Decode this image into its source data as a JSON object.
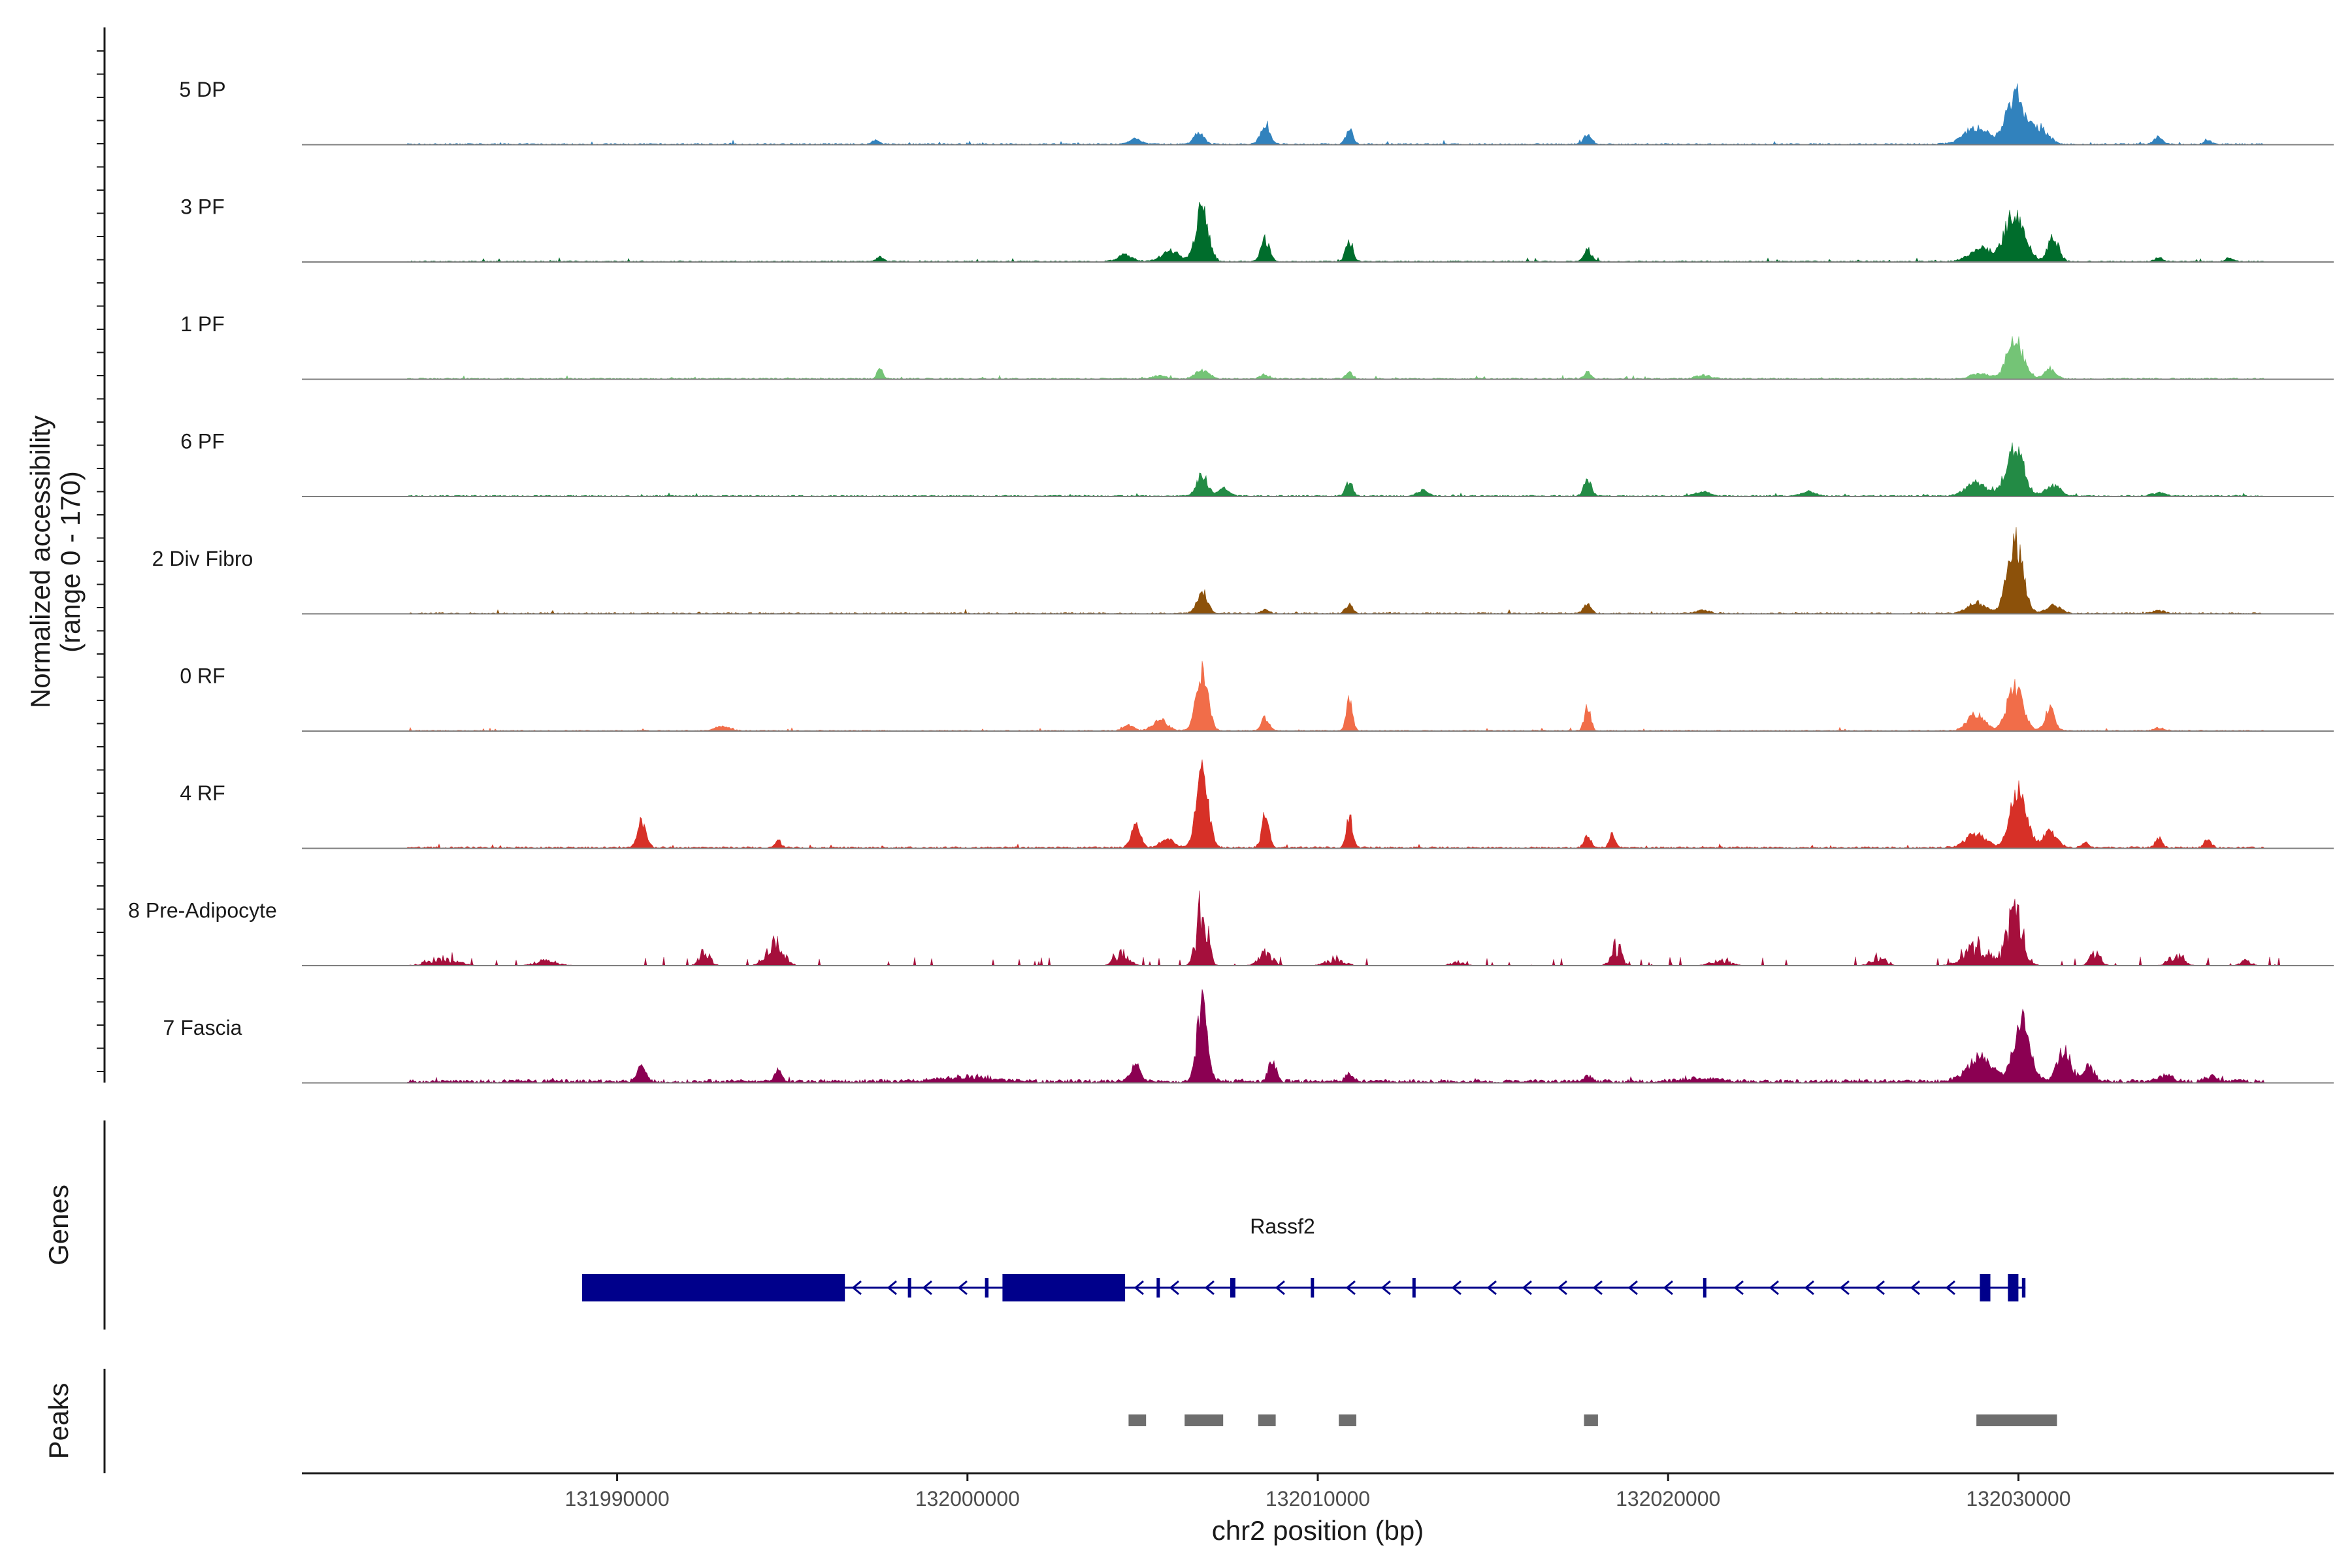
{
  "chart_data": {
    "type": "area",
    "region": {
      "chromosome": "chr2",
      "start": 131981000,
      "end": 132039000
    },
    "xlabel": "chr2 position (bp)",
    "ylabel": "Normalized accessibility",
    "ylabel_range": "(range 0 - 170)",
    "ylim": [
      0,
      170
    ],
    "x_ticks": [
      {
        "value": 131990000,
        "label": "131990000"
      },
      {
        "value": 132000000,
        "label": "132000000"
      },
      {
        "value": 132010000,
        "label": "132010000"
      },
      {
        "value": 132020000,
        "label": "132020000"
      },
      {
        "value": 132030000,
        "label": "132030000"
      }
    ],
    "tracks": [
      {
        "name": "5 DP",
        "color": "#3182bd",
        "baseline": 1.5,
        "noise_end": 132037000,
        "peaks": [
          [
            132029900,
            95,
            500
          ],
          [
            132028800,
            30,
            700
          ],
          [
            132030600,
            30,
            500
          ],
          [
            132008500,
            40,
            250
          ],
          [
            132010900,
            28,
            200
          ],
          [
            132006600,
            20,
            300
          ],
          [
            132017700,
            20,
            200
          ],
          [
            132034000,
            14,
            250
          ],
          [
            132004800,
            10,
            300
          ],
          [
            131997400,
            8,
            200
          ],
          [
            132035400,
            7,
            200
          ]
        ]
      },
      {
        "name": "3 PF",
        "color": "#006d2c",
        "baseline": 1.5,
        "noise_end": 132037000,
        "peaks": [
          [
            132006700,
            100,
            350
          ],
          [
            132029900,
            95,
            550
          ],
          [
            132031000,
            45,
            300
          ],
          [
            132028900,
            25,
            600
          ],
          [
            132008500,
            40,
            250
          ],
          [
            132010900,
            40,
            200
          ],
          [
            132017700,
            22,
            220
          ],
          [
            132005800,
            20,
            500
          ],
          [
            132004500,
            12,
            400
          ],
          [
            131997500,
            9,
            200
          ],
          [
            132034000,
            8,
            200
          ],
          [
            132036000,
            6,
            200
          ]
        ]
      },
      {
        "name": "1 PF",
        "color": "#74c476",
        "baseline": 1.5,
        "noise_end": 132037000,
        "peaks": [
          [
            132029900,
            75,
            450
          ],
          [
            132030900,
            20,
            300
          ],
          [
            132028900,
            10,
            500
          ],
          [
            132006700,
            15,
            400
          ],
          [
            131997500,
            22,
            150
          ],
          [
            132010900,
            12,
            200
          ],
          [
            132017700,
            12,
            200
          ],
          [
            132008500,
            8,
            250
          ],
          [
            132005500,
            6,
            400
          ],
          [
            132021000,
            6,
            400
          ]
        ]
      },
      {
        "name": "6 PF",
        "color": "#238b45",
        "baseline": 1.5,
        "noise_end": 132037000,
        "peaks": [
          [
            132029900,
            90,
            500
          ],
          [
            132028800,
            25,
            600
          ],
          [
            132031000,
            20,
            400
          ],
          [
            132006700,
            40,
            300
          ],
          [
            132017700,
            30,
            220
          ],
          [
            132010900,
            25,
            200
          ],
          [
            132007300,
            15,
            300
          ],
          [
            132013000,
            10,
            300
          ],
          [
            132021000,
            8,
            400
          ],
          [
            132024000,
            8,
            400
          ],
          [
            132034000,
            6,
            400
          ]
        ]
      },
      {
        "name": "2 Div Fibro",
        "color": "#8c510a",
        "baseline": 1.5,
        "noise_end": 132037000,
        "peaks": [
          [
            132029900,
            130,
            450
          ],
          [
            132028800,
            20,
            500
          ],
          [
            132031000,
            15,
            400
          ],
          [
            132006700,
            40,
            300
          ],
          [
            132010900,
            18,
            200
          ],
          [
            132017700,
            18,
            220
          ],
          [
            132008500,
            8,
            200
          ],
          [
            132021000,
            6,
            400
          ],
          [
            132034000,
            5,
            300
          ]
        ]
      },
      {
        "name": "0 RF",
        "color": "#f16d49",
        "baseline": 1.2,
        "noise_end": 132037000,
        "peaks": [
          [
            132006700,
            110,
            330
          ],
          [
            132029900,
            80,
            450
          ],
          [
            132030900,
            40,
            280
          ],
          [
            132028800,
            30,
            500
          ],
          [
            132010900,
            60,
            180
          ],
          [
            132017700,
            45,
            180
          ],
          [
            132008500,
            25,
            220
          ],
          [
            132005500,
            20,
            400
          ],
          [
            132004600,
            10,
            300
          ],
          [
            131993000,
            8,
            400
          ],
          [
            132034000,
            5,
            300
          ]
        ]
      },
      {
        "name": "4 RF",
        "color": "#d73027",
        "baseline": 2,
        "noise_end": 132037000,
        "peaks": [
          [
            132006700,
            150,
            330
          ],
          [
            132030000,
            105,
            450
          ],
          [
            132028800,
            25,
            600
          ],
          [
            132030900,
            30,
            400
          ],
          [
            132008500,
            60,
            200
          ],
          [
            132010900,
            60,
            180
          ],
          [
            132004800,
            45,
            250
          ],
          [
            131990700,
            50,
            250
          ],
          [
            131994600,
            18,
            150
          ],
          [
            132017700,
            20,
            200
          ],
          [
            132018400,
            25,
            180
          ],
          [
            132034000,
            18,
            200
          ],
          [
            132035400,
            15,
            200
          ],
          [
            132031900,
            10,
            200
          ],
          [
            132005700,
            15,
            400
          ]
        ]
      },
      {
        "name": "8 Pre-Adipocyte",
        "color": "#a50f3c",
        "baseline": 0,
        "noise_end": 132038000,
        "spiky": true,
        "peaks": [
          [
            132006700,
            130,
            300
          ],
          [
            132029900,
            105,
            450
          ],
          [
            132028800,
            40,
            700
          ],
          [
            131994500,
            60,
            450
          ],
          [
            132004400,
            25,
            400
          ],
          [
            132008500,
            25,
            400
          ],
          [
            132018500,
            40,
            300
          ],
          [
            131992500,
            30,
            300
          ],
          [
            132032200,
            25,
            300
          ],
          [
            132034500,
            25,
            400
          ],
          [
            132026000,
            20,
            400
          ],
          [
            132010500,
            15,
            500
          ],
          [
            132036500,
            10,
            300
          ],
          [
            131985000,
            15,
            800
          ],
          [
            131988000,
            12,
            600
          ],
          [
            132021500,
            10,
            600
          ],
          [
            132014000,
            8,
            400
          ]
        ]
      },
      {
        "name": "7 Fascia",
        "color": "#8b0052",
        "baseline": 4,
        "noise_end": 132037000,
        "peaks": [
          [
            132006700,
            140,
            300
          ],
          [
            132030100,
            120,
            450
          ],
          [
            132028900,
            45,
            700
          ],
          [
            132031300,
            55,
            400
          ],
          [
            132032000,
            30,
            300
          ],
          [
            132004800,
            35,
            250
          ],
          [
            132008700,
            40,
            220
          ],
          [
            131990700,
            30,
            250
          ],
          [
            131994600,
            20,
            200
          ],
          [
            132010900,
            15,
            200
          ],
          [
            132017700,
            10,
            200
          ],
          [
            132034200,
            12,
            400
          ],
          [
            132035500,
            10,
            300
          ],
          [
            132000000,
            8,
            1500
          ],
          [
            132021000,
            6,
            1000
          ]
        ]
      }
    ],
    "genes_panel_title": "Genes",
    "peaks_panel_title": "Peaks",
    "gene": {
      "name": "Rassf2",
      "strand": "-",
      "start": 131989000,
      "end": 132030200,
      "color": "#00008b",
      "exons": [
        {
          "start": 131989000,
          "end": 131996500,
          "thick": true
        },
        {
          "start": 131998300,
          "end": 131998350,
          "thick": false
        },
        {
          "start": 132000500,
          "end": 132000600,
          "thick": false
        },
        {
          "start": 132001000,
          "end": 132004500,
          "thick": true
        },
        {
          "start": 132005400,
          "end": 132005480,
          "thick": false
        },
        {
          "start": 132007500,
          "end": 132007650,
          "thick": false
        },
        {
          "start": 132009800,
          "end": 132009860,
          "thick": false
        },
        {
          "start": 132012700,
          "end": 132012790,
          "thick": false
        },
        {
          "start": 132021000,
          "end": 132021060,
          "thick": false
        },
        {
          "start": 132028900,
          "end": 132029200,
          "thick": true
        },
        {
          "start": 132029700,
          "end": 132030000,
          "thick": true
        },
        {
          "start": 132030100,
          "end": 132030200,
          "thick": false
        }
      ]
    },
    "peak_regions": [
      {
        "start": 132004600,
        "end": 132005100
      },
      {
        "start": 132006200,
        "end": 132007300
      },
      {
        "start": 132008300,
        "end": 132008800
      },
      {
        "start": 132010600,
        "end": 132011100
      },
      {
        "start": 132017600,
        "end": 132018000
      },
      {
        "start": 132028800,
        "end": 132031100
      }
    ]
  }
}
